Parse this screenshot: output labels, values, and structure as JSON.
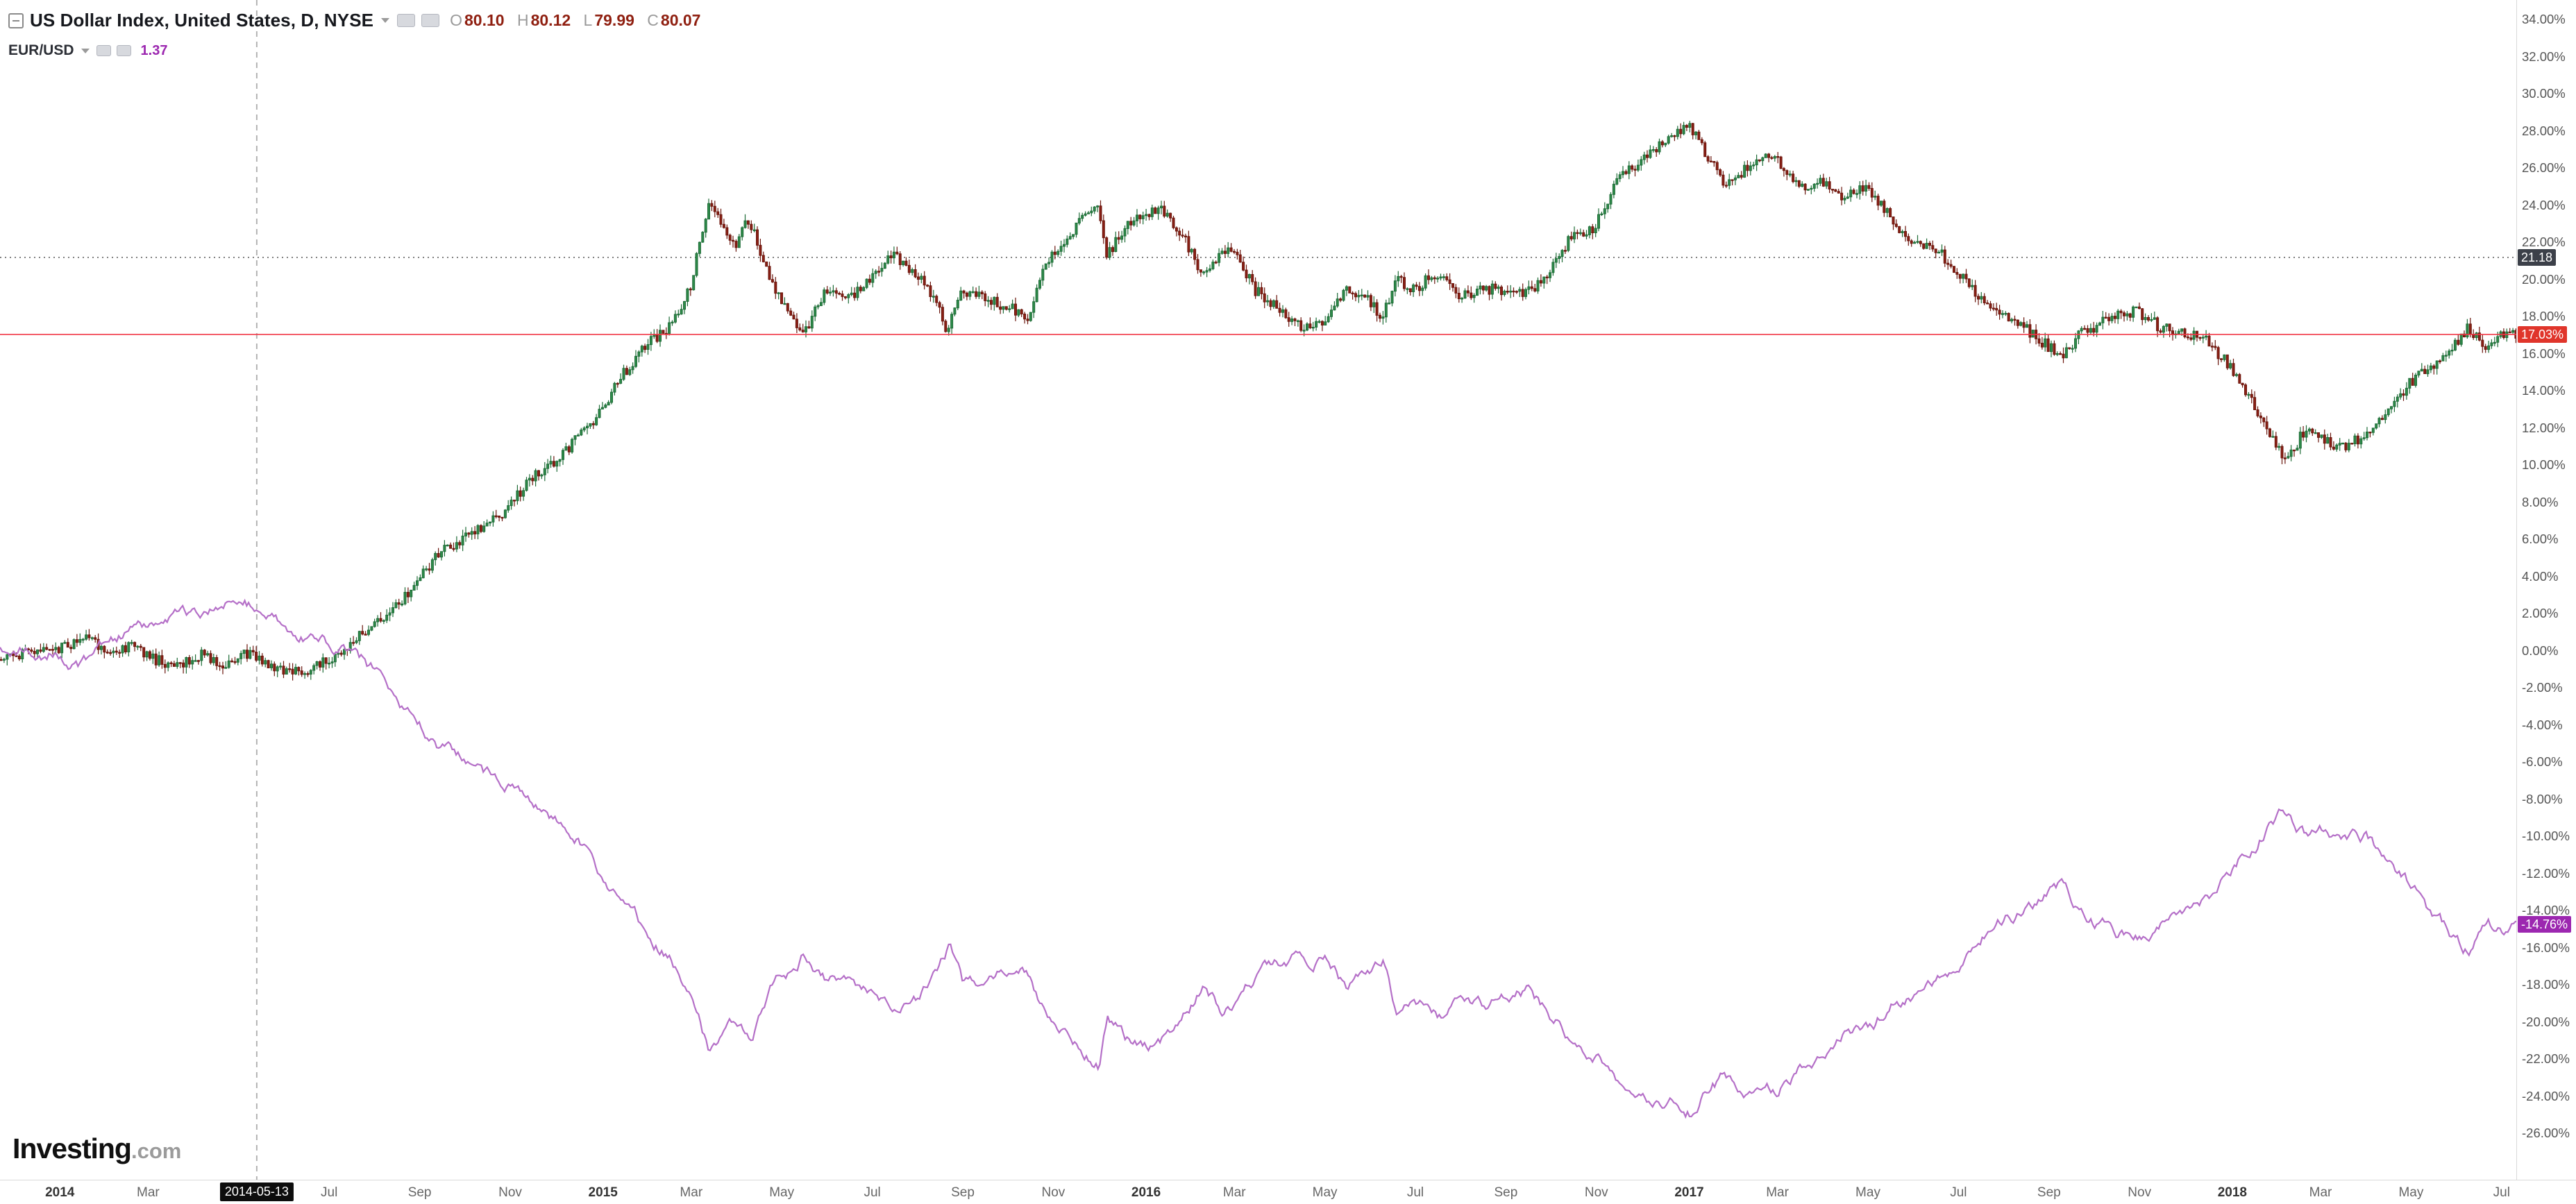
{
  "header": {
    "symbol_title": "US Dollar Index, United States, D, NYSE",
    "ohlc": {
      "o_label": "O",
      "o_value": "80.10",
      "h_label": "H",
      "h_value": "80.12",
      "l_label": "L",
      "l_value": "79.99",
      "c_label": "C",
      "c_value": "80.07"
    },
    "compare": {
      "symbol": "EUR/USD",
      "value": "1.37"
    }
  },
  "logo": {
    "text": "Investing",
    "suffix": ".com"
  },
  "chart_data": {
    "type": "mixed",
    "x_unit": "months_since_2014_01",
    "x_range": [
      -1.35,
      54.35
    ],
    "y_axis": {
      "min": -26,
      "max": 34,
      "step": 2,
      "format": "percent"
    },
    "grid": "off",
    "legend_position": "top-left",
    "x_ticks": [
      {
        "label": "2014",
        "t": 0.05,
        "type": "year"
      },
      {
        "label": "Mar",
        "t": 2,
        "type": "month"
      },
      {
        "label": "Jul",
        "t": 6,
        "type": "month"
      },
      {
        "label": "Sep",
        "t": 8,
        "type": "month"
      },
      {
        "label": "Nov",
        "t": 10,
        "type": "month"
      },
      {
        "label": "2015",
        "t": 12.05,
        "type": "year"
      },
      {
        "label": "Mar",
        "t": 14,
        "type": "month"
      },
      {
        "label": "May",
        "t": 16,
        "type": "month"
      },
      {
        "label": "Jul",
        "t": 18,
        "type": "month"
      },
      {
        "label": "Sep",
        "t": 20,
        "type": "month"
      },
      {
        "label": "Nov",
        "t": 22,
        "type": "month"
      },
      {
        "label": "2016",
        "t": 24.05,
        "type": "year"
      },
      {
        "label": "Mar",
        "t": 26,
        "type": "month"
      },
      {
        "label": "May",
        "t": 28,
        "type": "month"
      },
      {
        "label": "Jul",
        "t": 30,
        "type": "month"
      },
      {
        "label": "Sep",
        "t": 32,
        "type": "month"
      },
      {
        "label": "Nov",
        "t": 34,
        "type": "month"
      },
      {
        "label": "2017",
        "t": 36.05,
        "type": "year"
      },
      {
        "label": "Mar",
        "t": 38,
        "type": "month"
      },
      {
        "label": "May",
        "t": 40,
        "type": "month"
      },
      {
        "label": "Jul",
        "t": 42,
        "type": "month"
      },
      {
        "label": "Sep",
        "t": 44,
        "type": "month"
      },
      {
        "label": "Nov",
        "t": 46,
        "type": "month"
      },
      {
        "label": "2018",
        "t": 48.05,
        "type": "year"
      },
      {
        "label": "Mar",
        "t": 50,
        "type": "month"
      },
      {
        "label": "May",
        "t": 52,
        "type": "month"
      },
      {
        "label": "Jul",
        "t": 54,
        "type": "month"
      }
    ],
    "marked_date": {
      "label": "2014-05-13",
      "t": 4.4,
      "line_style": "dashed",
      "line_color": "#b3b3b3"
    },
    "h_lines": [
      {
        "value": 21.18,
        "style": "dotted",
        "color": "#666666",
        "label": "21.18",
        "label_bg": "#3c4049",
        "label_color": "#ffffff"
      },
      {
        "value": 17.03,
        "style": "solid",
        "color": "#f23645",
        "label": "17.03%",
        "label_bg": "#e0352b",
        "label_color": "#ffffff"
      }
    ],
    "series": [
      {
        "name": "US Dollar Index",
        "type": "candlestick",
        "unit": "percent_change",
        "up_fill": "#2e8b4a",
        "up_stroke": "#1d6b36",
        "down_fill": "#8b2015",
        "down_stroke": "#6a150c",
        "last_value": 17.03,
        "anchors_pct": [
          [
            -1.3,
            -0.3
          ],
          [
            0,
            0
          ],
          [
            0.7,
            0.7
          ],
          [
            1.2,
            -0.3
          ],
          [
            1.7,
            0.3
          ],
          [
            2.2,
            -0.5
          ],
          [
            2.7,
            -0.9
          ],
          [
            3.2,
            -0.2
          ],
          [
            3.7,
            -0.7
          ],
          [
            4.2,
            -0.2
          ],
          [
            4.6,
            -0.6
          ],
          [
            5,
            -1
          ],
          [
            5.5,
            -1.3
          ],
          [
            6,
            -0.5
          ],
          [
            6.5,
            0.4
          ],
          [
            7,
            1.3
          ],
          [
            7.5,
            2.4
          ],
          [
            8,
            3.8
          ],
          [
            8.5,
            5.3
          ],
          [
            9,
            6
          ],
          [
            9.5,
            6.7
          ],
          [
            10,
            7.7
          ],
          [
            10.5,
            9.3
          ],
          [
            11,
            10
          ],
          [
            11.5,
            11.4
          ],
          [
            12,
            12.7
          ],
          [
            12.5,
            14.8
          ],
          [
            13,
            16.4
          ],
          [
            13.5,
            17.2
          ],
          [
            14,
            19.5
          ],
          [
            14.4,
            24
          ],
          [
            14.7,
            23
          ],
          [
            15,
            21.8
          ],
          [
            15.3,
            23.3
          ],
          [
            15.8,
            19.8
          ],
          [
            16.2,
            18.3
          ],
          [
            16.5,
            16.9
          ],
          [
            17,
            19.4
          ],
          [
            17.5,
            19
          ],
          [
            18,
            20
          ],
          [
            18.4,
            21.4
          ],
          [
            19,
            20.4
          ],
          [
            19.4,
            18.9
          ],
          [
            19.7,
            17.2
          ],
          [
            20,
            19.4
          ],
          [
            20.5,
            19
          ],
          [
            21,
            18.5
          ],
          [
            21.5,
            18
          ],
          [
            21.8,
            20.8
          ],
          [
            22.2,
            21.6
          ],
          [
            22.6,
            23
          ],
          [
            23,
            24
          ],
          [
            23.2,
            21.2
          ],
          [
            23.6,
            22.8
          ],
          [
            24,
            23.4
          ],
          [
            24.4,
            23.8
          ],
          [
            25,
            21.9
          ],
          [
            25.3,
            20.1
          ],
          [
            25.7,
            21.4
          ],
          [
            26,
            21.5
          ],
          [
            26.5,
            19.4
          ],
          [
            27,
            18.4
          ],
          [
            27.5,
            17.4
          ],
          [
            28,
            17.6
          ],
          [
            28.5,
            19.4
          ],
          [
            29,
            18.9
          ],
          [
            29.3,
            18
          ],
          [
            29.6,
            20
          ],
          [
            30,
            19.4
          ],
          [
            30.5,
            20.4
          ],
          [
            31,
            19
          ],
          [
            31.5,
            19.5
          ],
          [
            32,
            19.4
          ],
          [
            32.5,
            19.2
          ],
          [
            33,
            20.4
          ],
          [
            33.5,
            22.4
          ],
          [
            34,
            22.8
          ],
          [
            34.5,
            25.4
          ],
          [
            35,
            26.4
          ],
          [
            35.5,
            27.4
          ],
          [
            36.1,
            28.3
          ],
          [
            36.4,
            26.9
          ],
          [
            36.8,
            25.4
          ],
          [
            37,
            25.2
          ],
          [
            37.5,
            26.4
          ],
          [
            38,
            26.7
          ],
          [
            38.3,
            25.4
          ],
          [
            38.7,
            25
          ],
          [
            39,
            25.4
          ],
          [
            39.5,
            24.4
          ],
          [
            40,
            24.9
          ],
          [
            40.5,
            23.4
          ],
          [
            41,
            22
          ],
          [
            41.5,
            21.8
          ],
          [
            42,
            20.4
          ],
          [
            42.5,
            19
          ],
          [
            43,
            18
          ],
          [
            43.5,
            17.4
          ],
          [
            44,
            16.4
          ],
          [
            44.3,
            15.8
          ],
          [
            44.7,
            17
          ],
          [
            45,
            17.4
          ],
          [
            45.5,
            18
          ],
          [
            46,
            18.3
          ],
          [
            46.5,
            17.4
          ],
          [
            47,
            17.2
          ],
          [
            47.5,
            16.7
          ],
          [
            48,
            15.4
          ],
          [
            48.5,
            13.4
          ],
          [
            49,
            11.4
          ],
          [
            49.3,
            10.2
          ],
          [
            49.7,
            12
          ],
          [
            50,
            11.4
          ],
          [
            50.5,
            11
          ],
          [
            51,
            11.5
          ],
          [
            51.5,
            13
          ],
          [
            52,
            14.4
          ],
          [
            52.5,
            15.4
          ],
          [
            53,
            16.4
          ],
          [
            53.3,
            17.4
          ],
          [
            53.7,
            16.4
          ],
          [
            54,
            17
          ],
          [
            54.35,
            17.03
          ]
        ]
      },
      {
        "name": "EUR/USD",
        "type": "line",
        "unit": "percent_change",
        "color": "#b570c8",
        "last_value": -14.76,
        "label": "-14.76%",
        "label_bg": "#9c27b0",
        "label_color": "#ffffff",
        "anchors_pct": [
          [
            -1.3,
            0.3
          ],
          [
            0,
            0
          ],
          [
            0.5,
            -0.8
          ],
          [
            1,
            0.3
          ],
          [
            1.5,
            1
          ],
          [
            2,
            1.4
          ],
          [
            2.5,
            2.1
          ],
          [
            3,
            1.7
          ],
          [
            3.5,
            2.5
          ],
          [
            4,
            3
          ],
          [
            4.4,
            2.4
          ],
          [
            5,
            1.2
          ],
          [
            5.5,
            0.8
          ],
          [
            6,
            0.4
          ],
          [
            6.5,
            -0.2
          ],
          [
            7,
            -1.2
          ],
          [
            7.5,
            -2.6
          ],
          [
            8,
            -4
          ],
          [
            8.5,
            -5.2
          ],
          [
            9,
            -6
          ],
          [
            9.5,
            -6.8
          ],
          [
            10,
            -7.4
          ],
          [
            10.5,
            -8.6
          ],
          [
            11,
            -9.2
          ],
          [
            11.5,
            -10.2
          ],
          [
            12,
            -12
          ],
          [
            12.5,
            -13.8
          ],
          [
            13,
            -15.2
          ],
          [
            13.5,
            -16.4
          ],
          [
            14,
            -18
          ],
          [
            14.4,
            -21.4
          ],
          [
            14.7,
            -20.6
          ],
          [
            15,
            -19.8
          ],
          [
            15.3,
            -21.2
          ],
          [
            15.8,
            -18.4
          ],
          [
            16.2,
            -17.2
          ],
          [
            16.5,
            -16.2
          ],
          [
            17,
            -18
          ],
          [
            17.5,
            -17.6
          ],
          [
            18,
            -18.4
          ],
          [
            18.5,
            -19.6
          ],
          [
            19,
            -18.8
          ],
          [
            19.4,
            -17.6
          ],
          [
            19.7,
            -15.9
          ],
          [
            20,
            -18
          ],
          [
            20.5,
            -17.6
          ],
          [
            21,
            -16.9
          ],
          [
            21.5,
            -17.4
          ],
          [
            21.8,
            -19.4
          ],
          [
            22.2,
            -20.4
          ],
          [
            22.6,
            -21.4
          ],
          [
            23,
            -22.2
          ],
          [
            23.2,
            -19.9
          ],
          [
            23.6,
            -21
          ],
          [
            24,
            -21.4
          ],
          [
            24.4,
            -21
          ],
          [
            25,
            -19.4
          ],
          [
            25.3,
            -18.1
          ],
          [
            25.7,
            -19.4
          ],
          [
            26,
            -19
          ],
          [
            26.5,
            -17.6
          ],
          [
            27,
            -17
          ],
          [
            27.5,
            -16.4
          ],
          [
            28,
            -16.6
          ],
          [
            28.5,
            -18.2
          ],
          [
            29,
            -17.6
          ],
          [
            29.3,
            -16.9
          ],
          [
            29.6,
            -19.4
          ],
          [
            30,
            -19.2
          ],
          [
            30.5,
            -19.9
          ],
          [
            31,
            -18.6
          ],
          [
            31.5,
            -19
          ],
          [
            32,
            -18.9
          ],
          [
            32.5,
            -18.4
          ],
          [
            33,
            -19.6
          ],
          [
            33.5,
            -21
          ],
          [
            34,
            -21.6
          ],
          [
            34.5,
            -23
          ],
          [
            35,
            -23.6
          ],
          [
            35.5,
            -24.2
          ],
          [
            36.1,
            -24.8
          ],
          [
            36.4,
            -23.6
          ],
          [
            36.8,
            -23
          ],
          [
            37,
            -23.4
          ],
          [
            37.5,
            -23.9
          ],
          [
            38,
            -23.6
          ],
          [
            38.3,
            -22.9
          ],
          [
            38.7,
            -22.4
          ],
          [
            39,
            -22
          ],
          [
            39.5,
            -20.4
          ],
          [
            40,
            -20.6
          ],
          [
            40.5,
            -19.2
          ],
          [
            41,
            -18.4
          ],
          [
            41.5,
            -17.9
          ],
          [
            42,
            -16.6
          ],
          [
            42.5,
            -15.2
          ],
          [
            43,
            -14.4
          ],
          [
            43.5,
            -14
          ],
          [
            44,
            -13.2
          ],
          [
            44.3,
            -12.6
          ],
          [
            44.7,
            -13.9
          ],
          [
            45,
            -14.6
          ],
          [
            45.5,
            -15.2
          ],
          [
            46,
            -15.4
          ],
          [
            46.5,
            -14.6
          ],
          [
            47,
            -14.4
          ],
          [
            47.5,
            -13.6
          ],
          [
            48,
            -12
          ],
          [
            48.5,
            -10.4
          ],
          [
            49,
            -9
          ],
          [
            49.3,
            -8.6
          ],
          [
            49.7,
            -10
          ],
          [
            50,
            -9.9
          ],
          [
            50.5,
            -10.4
          ],
          [
            51,
            -10.2
          ],
          [
            51.5,
            -11.6
          ],
          [
            52,
            -12.9
          ],
          [
            52.5,
            -14.4
          ],
          [
            53,
            -15.6
          ],
          [
            53.3,
            -16.2
          ],
          [
            53.7,
            -15
          ],
          [
            54,
            -15.3
          ],
          [
            54.35,
            -14.76
          ]
        ]
      }
    ]
  }
}
